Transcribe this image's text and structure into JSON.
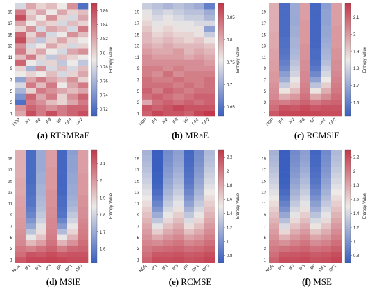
{
  "chart_data": [
    {
      "type": "heatmap",
      "panel_letter": "(a)",
      "caption": "RTSMRaE",
      "categories": [
        "NOR",
        "IF1",
        "IF2",
        "IF3",
        "BF",
        "OF1",
        "OF2"
      ],
      "y_ticks": [
        "1",
        "3",
        "5",
        "7",
        "9",
        "11",
        "13",
        "15",
        "17",
        "19"
      ],
      "rows": 20,
      "colorbar_label": "Entropy Value",
      "colorbar_ticks": [
        "0.72",
        "0.74",
        "0.76",
        "0.78",
        "0.8",
        "0.82",
        "0.84",
        "0.86"
      ],
      "range": [
        0.71,
        0.87
      ],
      "values": [
        [
          0.82,
          0.86,
          0.84,
          0.86,
          0.84,
          0.85,
          0.86
        ],
        [
          0.83,
          0.85,
          0.84,
          0.83,
          0.84,
          0.85,
          0.85
        ],
        [
          0.72,
          0.84,
          0.83,
          0.81,
          0.8,
          0.82,
          0.84
        ],
        [
          0.74,
          0.85,
          0.82,
          0.84,
          0.8,
          0.83,
          0.85
        ],
        [
          0.76,
          0.8,
          0.84,
          0.83,
          0.82,
          0.81,
          0.82
        ],
        [
          0.78,
          0.84,
          0.81,
          0.84,
          0.79,
          0.82,
          0.84
        ],
        [
          0.75,
          0.82,
          0.84,
          0.82,
          0.81,
          0.83,
          0.8
        ],
        [
          0.79,
          0.8,
          0.79,
          0.81,
          0.78,
          0.8,
          0.82
        ],
        [
          0.8,
          0.76,
          0.83,
          0.78,
          0.81,
          0.78,
          0.81
        ],
        [
          0.85,
          0.79,
          0.78,
          0.8,
          0.77,
          0.79,
          0.77
        ],
        [
          0.81,
          0.84,
          0.8,
          0.77,
          0.81,
          0.8,
          0.79
        ],
        [
          0.84,
          0.8,
          0.82,
          0.79,
          0.78,
          0.82,
          0.83
        ],
        [
          0.83,
          0.78,
          0.79,
          0.82,
          0.8,
          0.78,
          0.8
        ],
        [
          0.86,
          0.81,
          0.77,
          0.8,
          0.82,
          0.8,
          0.79
        ],
        [
          0.85,
          0.8,
          0.83,
          0.78,
          0.79,
          0.83,
          0.81
        ],
        [
          0.8,
          0.83,
          0.78,
          0.82,
          0.81,
          0.78,
          0.84
        ],
        [
          0.82,
          0.79,
          0.81,
          0.8,
          0.78,
          0.81,
          0.8
        ],
        [
          0.86,
          0.81,
          0.79,
          0.83,
          0.8,
          0.78,
          0.82
        ],
        [
          0.84,
          0.8,
          0.82,
          0.79,
          0.82,
          0.8,
          0.81
        ],
        [
          0.78,
          0.82,
          0.8,
          0.81,
          0.79,
          0.83,
          0.72
        ]
      ]
    },
    {
      "type": "heatmap",
      "panel_letter": "(b)",
      "caption": "MRaE",
      "categories": [
        "NOR",
        "IF1",
        "IF2",
        "IF3",
        "BF",
        "OF1",
        "OF2"
      ],
      "y_ticks": [
        "1",
        "3",
        "5",
        "7",
        "9",
        "11",
        "13",
        "15",
        "17",
        "19"
      ],
      "rows": 20,
      "colorbar_label": "Entropy Value",
      "colorbar_ticks": [
        "0.65",
        "0.7",
        "0.75",
        "0.8",
        "0.85"
      ],
      "range": [
        0.63,
        0.88
      ],
      "values": [
        [
          0.85,
          0.87,
          0.86,
          0.86,
          0.85,
          0.87,
          0.88
        ],
        [
          0.86,
          0.85,
          0.86,
          0.87,
          0.86,
          0.86,
          0.86
        ],
        [
          0.8,
          0.84,
          0.85,
          0.84,
          0.85,
          0.84,
          0.85
        ],
        [
          0.84,
          0.85,
          0.84,
          0.83,
          0.84,
          0.85,
          0.85
        ],
        [
          0.85,
          0.83,
          0.85,
          0.84,
          0.83,
          0.84,
          0.84
        ],
        [
          0.84,
          0.84,
          0.84,
          0.83,
          0.84,
          0.83,
          0.84
        ],
        [
          0.84,
          0.83,
          0.83,
          0.84,
          0.83,
          0.83,
          0.84
        ],
        [
          0.83,
          0.82,
          0.84,
          0.82,
          0.83,
          0.83,
          0.83
        ],
        [
          0.83,
          0.83,
          0.82,
          0.83,
          0.82,
          0.82,
          0.82
        ],
        [
          0.82,
          0.82,
          0.82,
          0.82,
          0.82,
          0.82,
          0.81
        ],
        [
          0.82,
          0.81,
          0.81,
          0.81,
          0.8,
          0.81,
          0.8
        ],
        [
          0.81,
          0.8,
          0.8,
          0.81,
          0.79,
          0.8,
          0.79
        ],
        [
          0.8,
          0.79,
          0.8,
          0.79,
          0.79,
          0.79,
          0.78
        ],
        [
          0.79,
          0.78,
          0.79,
          0.78,
          0.77,
          0.78,
          0.76
        ],
        [
          0.79,
          0.77,
          0.78,
          0.77,
          0.77,
          0.76,
          0.73
        ],
        [
          0.78,
          0.76,
          0.77,
          0.76,
          0.75,
          0.76,
          0.69
        ],
        [
          0.77,
          0.75,
          0.76,
          0.75,
          0.75,
          0.74,
          0.74
        ],
        [
          0.76,
          0.74,
          0.75,
          0.74,
          0.73,
          0.73,
          0.71
        ],
        [
          0.75,
          0.73,
          0.74,
          0.73,
          0.72,
          0.72,
          0.7
        ],
        [
          0.73,
          0.72,
          0.71,
          0.72,
          0.71,
          0.7,
          0.66
        ]
      ]
    },
    {
      "type": "heatmap",
      "panel_letter": "(c)",
      "caption": "RCMSlE",
      "categories": [
        "NOR",
        "IF1",
        "IF2",
        "IF3",
        "BF",
        "OF1",
        "OF2"
      ],
      "y_ticks": [
        "1",
        "3",
        "5",
        "7",
        "9",
        "11",
        "13",
        "15",
        "17",
        "19"
      ],
      "rows": 20,
      "colorbar_label": "Entropy Value",
      "colorbar_ticks": [
        "1.6",
        "1.7",
        "1.8",
        "1.9",
        "2",
        "2.1"
      ],
      "range": [
        1.52,
        2.18
      ],
      "values": [
        [
          2.12,
          2.15,
          2.15,
          2.16,
          2.15,
          2.14,
          2.14
        ],
        [
          2.08,
          2.13,
          2.12,
          2.14,
          2.12,
          2.13,
          2.13
        ],
        [
          2.06,
          2.05,
          2.07,
          2.1,
          2.06,
          2.09,
          2.1
        ],
        [
          2.03,
          1.96,
          2.0,
          2.07,
          1.97,
          2.02,
          2.08
        ],
        [
          2.02,
          1.86,
          1.93,
          2.05,
          1.86,
          1.96,
          2.06
        ],
        [
          2.01,
          1.78,
          1.88,
          2.04,
          1.76,
          1.9,
          2.05
        ],
        [
          2.0,
          1.71,
          1.84,
          2.03,
          1.68,
          1.85,
          2.04
        ],
        [
          2.0,
          1.67,
          1.8,
          2.03,
          1.62,
          1.81,
          2.03
        ],
        [
          1.99,
          1.62,
          1.78,
          2.02,
          1.58,
          1.78,
          2.02
        ],
        [
          1.99,
          1.6,
          1.76,
          2.02,
          1.56,
          1.75,
          2.02
        ],
        [
          1.98,
          1.58,
          1.74,
          2.01,
          1.55,
          1.73,
          2.01
        ],
        [
          1.98,
          1.57,
          1.73,
          2.01,
          1.55,
          1.72,
          2.01
        ],
        [
          1.97,
          1.56,
          1.72,
          2.01,
          1.54,
          1.71,
          2.0
        ],
        [
          1.97,
          1.56,
          1.72,
          2.0,
          1.54,
          1.7,
          2.0
        ],
        [
          1.97,
          1.55,
          1.71,
          2.0,
          1.54,
          1.69,
          2.0
        ],
        [
          1.96,
          1.55,
          1.71,
          2.0,
          1.54,
          1.69,
          2.0
        ],
        [
          1.96,
          1.55,
          1.7,
          2.0,
          1.54,
          1.68,
          1.99
        ],
        [
          1.96,
          1.55,
          1.7,
          1.99,
          1.54,
          1.68,
          1.99
        ],
        [
          1.96,
          1.55,
          1.7,
          1.99,
          1.54,
          1.68,
          1.99
        ],
        [
          1.96,
          1.55,
          1.7,
          1.99,
          1.54,
          1.67,
          1.99
        ]
      ]
    },
    {
      "type": "heatmap",
      "panel_letter": "(d)",
      "caption": "MSlE",
      "categories": [
        "NOR",
        "IF1",
        "IF2",
        "IF3",
        "BF",
        "OF1",
        "OF2"
      ],
      "y_ticks": [
        "1",
        "3",
        "5",
        "7",
        "9",
        "11",
        "13",
        "15",
        "17",
        "19"
      ],
      "rows": 20,
      "colorbar_label": "Entropy Value",
      "colorbar_ticks": [
        "1.6",
        "1.7",
        "1.8",
        "1.9",
        "2",
        "2.1"
      ],
      "range": [
        1.52,
        2.18
      ],
      "values": [
        [
          2.12,
          2.15,
          2.15,
          2.16,
          2.15,
          2.14,
          2.14
        ],
        [
          2.08,
          2.13,
          2.12,
          2.14,
          2.12,
          2.13,
          2.13
        ],
        [
          2.06,
          2.04,
          2.07,
          2.1,
          2.05,
          2.09,
          2.1
        ],
        [
          2.03,
          1.94,
          1.99,
          2.07,
          1.95,
          2.01,
          2.08
        ],
        [
          2.02,
          1.84,
          1.92,
          2.05,
          1.84,
          1.95,
          2.06
        ],
        [
          2.01,
          1.76,
          1.87,
          2.04,
          1.74,
          1.89,
          2.05
        ],
        [
          2.0,
          1.69,
          1.83,
          2.03,
          1.66,
          1.84,
          2.04
        ],
        [
          2.0,
          1.65,
          1.79,
          2.03,
          1.61,
          1.8,
          2.03
        ],
        [
          1.99,
          1.61,
          1.77,
          2.02,
          1.57,
          1.77,
          2.02
        ],
        [
          1.99,
          1.59,
          1.75,
          2.02,
          1.56,
          1.74,
          2.02
        ],
        [
          1.98,
          1.57,
          1.74,
          2.01,
          1.55,
          1.72,
          2.01
        ],
        [
          1.98,
          1.57,
          1.73,
          2.01,
          1.55,
          1.71,
          2.01
        ],
        [
          1.97,
          1.56,
          1.72,
          2.01,
          1.54,
          1.7,
          2.0
        ],
        [
          1.97,
          1.56,
          1.72,
          2.0,
          1.54,
          1.7,
          2.0
        ],
        [
          1.97,
          1.55,
          1.71,
          2.0,
          1.54,
          1.69,
          2.0
        ],
        [
          1.96,
          1.55,
          1.71,
          2.0,
          1.54,
          1.69,
          2.0
        ],
        [
          1.96,
          1.55,
          1.7,
          2.0,
          1.54,
          1.68,
          1.99
        ],
        [
          1.96,
          1.55,
          1.7,
          1.99,
          1.54,
          1.68,
          1.99
        ],
        [
          1.96,
          1.55,
          1.7,
          1.99,
          1.54,
          1.68,
          1.99
        ],
        [
          1.96,
          1.55,
          1.7,
          1.99,
          1.54,
          1.67,
          1.99
        ]
      ]
    },
    {
      "type": "heatmap",
      "panel_letter": "(e)",
      "caption": "RCMSE",
      "categories": [
        "NOR",
        "IF1",
        "IF2",
        "IF3",
        "BF",
        "OF1",
        "OF2"
      ],
      "y_ticks": [
        "1",
        "3",
        "5",
        "7",
        "9",
        "11",
        "13",
        "15",
        "17",
        "19"
      ],
      "rows": 20,
      "colorbar_label": "Entropy Value",
      "colorbar_ticks": [
        "0.8",
        "1",
        "1.2",
        "1.4",
        "1.6",
        "1.8",
        "2",
        "2.2"
      ],
      "range": [
        0.7,
        2.3
      ],
      "values": [
        [
          2.1,
          2.2,
          2.2,
          2.22,
          2.18,
          2.2,
          2.24
        ],
        [
          2.05,
          2.15,
          2.16,
          2.18,
          2.14,
          2.16,
          2.2
        ],
        [
          2.0,
          2.05,
          2.08,
          2.1,
          2.05,
          2.08,
          2.12
        ],
        [
          1.95,
          1.92,
          1.98,
          2.02,
          1.94,
          1.98,
          2.05
        ],
        [
          1.9,
          1.78,
          1.88,
          1.94,
          1.82,
          1.88,
          1.98
        ],
        [
          1.85,
          1.62,
          1.78,
          1.86,
          1.68,
          1.78,
          1.92
        ],
        [
          1.8,
          1.46,
          1.68,
          1.78,
          1.55,
          1.68,
          1.86
        ],
        [
          1.74,
          1.3,
          1.58,
          1.7,
          1.42,
          1.58,
          1.8
        ],
        [
          1.68,
          1.15,
          1.48,
          1.62,
          1.3,
          1.48,
          1.74
        ],
        [
          1.62,
          1.02,
          1.4,
          1.54,
          1.18,
          1.4,
          1.68
        ],
        [
          1.56,
          0.92,
          1.32,
          1.46,
          1.08,
          1.32,
          1.62
        ],
        [
          1.5,
          0.84,
          1.25,
          1.4,
          1.0,
          1.25,
          1.56
        ],
        [
          1.45,
          0.78,
          1.19,
          1.34,
          0.93,
          1.19,
          1.5
        ],
        [
          1.4,
          0.74,
          1.14,
          1.28,
          0.88,
          1.14,
          1.45
        ],
        [
          1.35,
          0.72,
          1.1,
          1.23,
          0.84,
          1.1,
          1.4
        ],
        [
          1.31,
          0.71,
          1.06,
          1.19,
          0.81,
          1.06,
          1.36
        ],
        [
          1.27,
          0.7,
          1.03,
          1.15,
          0.79,
          1.03,
          1.32
        ],
        [
          1.24,
          0.7,
          1.0,
          1.12,
          0.77,
          1.0,
          1.28
        ],
        [
          1.21,
          0.7,
          0.98,
          1.09,
          0.76,
          0.98,
          1.25
        ],
        [
          1.18,
          0.7,
          0.96,
          1.07,
          0.75,
          0.96,
          1.22
        ]
      ]
    },
    {
      "type": "heatmap",
      "panel_letter": "(f)",
      "caption": "MSE",
      "categories": [
        "NOR",
        "IF1",
        "IF2",
        "IF3",
        "BF",
        "OF1",
        "OF2"
      ],
      "y_ticks": [
        "1",
        "3",
        "5",
        "7",
        "9",
        "11",
        "13",
        "15",
        "17",
        "19"
      ],
      "rows": 20,
      "colorbar_label": "Entropy Value",
      "colorbar_ticks": [
        "0.8",
        "1",
        "1.2",
        "1.4",
        "1.6",
        "1.8",
        "2",
        "2.2"
      ],
      "range": [
        0.7,
        2.3
      ],
      "values": [
        [
          2.1,
          2.2,
          2.2,
          2.22,
          2.18,
          2.2,
          2.24
        ],
        [
          2.05,
          2.15,
          2.16,
          2.18,
          2.14,
          2.16,
          2.2
        ],
        [
          2.0,
          2.04,
          2.07,
          2.1,
          2.04,
          2.07,
          2.12
        ],
        [
          1.95,
          1.9,
          1.97,
          2.02,
          1.92,
          1.97,
          2.05
        ],
        [
          1.9,
          1.75,
          1.87,
          1.94,
          1.8,
          1.87,
          1.98
        ],
        [
          1.85,
          1.58,
          1.77,
          1.86,
          1.66,
          1.77,
          1.92
        ],
        [
          1.8,
          1.42,
          1.67,
          1.78,
          1.52,
          1.67,
          1.86
        ],
        [
          1.74,
          1.26,
          1.57,
          1.7,
          1.4,
          1.57,
          1.8
        ],
        [
          1.68,
          1.12,
          1.47,
          1.62,
          1.28,
          1.47,
          1.74
        ],
        [
          1.62,
          0.99,
          1.39,
          1.54,
          1.16,
          1.39,
          1.68
        ],
        [
          1.56,
          0.9,
          1.31,
          1.46,
          1.07,
          1.31,
          1.62
        ],
        [
          1.5,
          0.82,
          1.24,
          1.4,
          0.99,
          1.24,
          1.56
        ],
        [
          1.45,
          0.77,
          1.18,
          1.34,
          0.92,
          1.18,
          1.5
        ],
        [
          1.4,
          0.73,
          1.13,
          1.28,
          0.87,
          1.13,
          1.45
        ],
        [
          1.35,
          0.71,
          1.09,
          1.23,
          0.83,
          1.09,
          1.4
        ],
        [
          1.31,
          0.7,
          1.05,
          1.19,
          0.8,
          1.05,
          1.36
        ],
        [
          1.27,
          0.7,
          1.02,
          1.15,
          0.78,
          1.02,
          1.32
        ],
        [
          1.24,
          0.7,
          0.99,
          1.12,
          0.76,
          0.99,
          1.28
        ],
        [
          1.21,
          0.7,
          0.97,
          1.09,
          0.75,
          0.97,
          1.25
        ],
        [
          1.18,
          0.7,
          0.95,
          1.07,
          0.74,
          0.95,
          1.22
        ]
      ]
    }
  ],
  "colors": {
    "low": "#3a5fbf",
    "mid": "#ece9e6",
    "high": "#c2384a"
  }
}
